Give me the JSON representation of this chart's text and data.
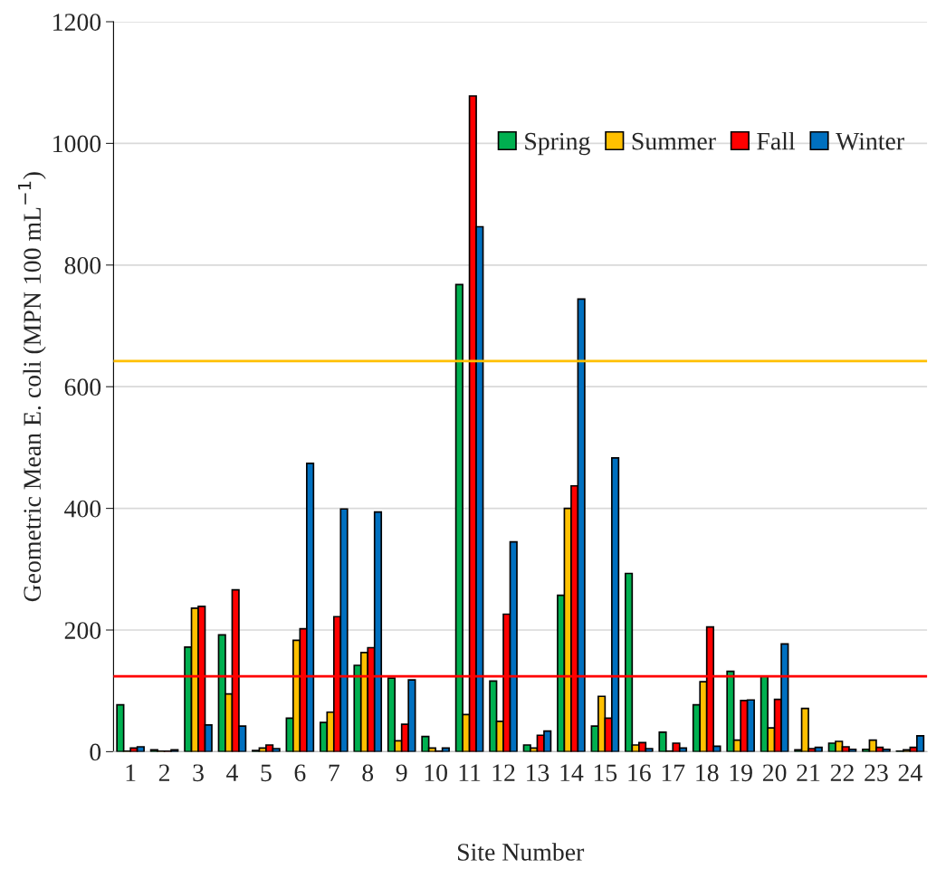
{
  "chart_data": {
    "type": "bar",
    "xlabel": "Site Number",
    "ylabel": "Geometric Mean E. coli (MPN 100 mL$^{−1}$)",
    "categories": [
      "1",
      "2",
      "3",
      "4",
      "5",
      "6",
      "7",
      "8",
      "9",
      "10",
      "11",
      "12",
      "13",
      "14",
      "15",
      "16",
      "17",
      "18",
      "19",
      "20",
      "21",
      "22",
      "23",
      "24"
    ],
    "series": [
      {
        "name": "Spring",
        "color": "#00b050",
        "values": [
          77,
          3,
          172,
          192,
          2,
          55,
          48,
          142,
          121,
          25,
          768,
          116,
          11,
          257,
          42,
          293,
          32,
          77,
          132,
          124,
          3,
          14,
          4,
          1
        ]
      },
      {
        "name": "Summer",
        "color": "#ffc000",
        "values": [
          1,
          1,
          236,
          95,
          6,
          183,
          65,
          163,
          18,
          6,
          61,
          50,
          6,
          400,
          91,
          11,
          1,
          115,
          19,
          39,
          71,
          17,
          19,
          3
        ]
      },
      {
        "name": "Fall",
        "color": "#ff0000",
        "values": [
          6,
          1,
          239,
          266,
          11,
          202,
          222,
          171,
          45,
          1,
          1078,
          226,
          27,
          437,
          55,
          15,
          14,
          205,
          84,
          86,
          5,
          8,
          7,
          7
        ]
      },
      {
        "name": "Winter",
        "color": "#0070c0",
        "values": [
          8,
          3,
          44,
          42,
          5,
          474,
          399,
          394,
          118,
          6,
          863,
          345,
          34,
          744,
          483,
          5,
          6,
          9,
          85,
          177,
          7,
          4,
          4,
          26
        ]
      }
    ],
    "ylim": [
      0,
      1200
    ],
    "yticks": [
      0,
      200,
      400,
      600,
      800,
      1000,
      1200
    ],
    "ref_lines": [
      {
        "axis": "y",
        "value": 642,
        "color": "#ffc000"
      },
      {
        "axis": "y",
        "value": 124,
        "color": "#ff0000"
      }
    ],
    "grid": "y",
    "legend": "top right"
  }
}
